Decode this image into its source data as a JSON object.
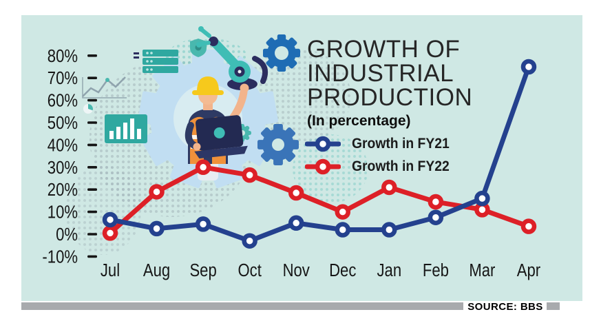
{
  "header": {
    "title_lines": [
      "GROWTH OF",
      "INDUSTRIAL",
      "PRODUCTION"
    ],
    "subtitle": "(In percentage)"
  },
  "source": {
    "label": "SOURCE: BBS"
  },
  "colors": {
    "panel_background": "#cfe8e4",
    "fy21_blue": "#24418e",
    "fy22_red": "#dd2027",
    "source_bar_gray": "#a8aaad",
    "title_gear_blue": "#1e6cb4",
    "axis_text": "#161616"
  },
  "icons": {
    "title_gear": "gear-icon",
    "illustration": "worker-with-laptop-and-industry-icons"
  },
  "chart_data": {
    "type": "line",
    "title": "GROWTH OF INDUSTRIAL PRODUCTION",
    "subtitle": "(In percentage)",
    "categories": [
      "Jul",
      "Aug",
      "Sep",
      "Oct",
      "Nov",
      "Dec",
      "Jan",
      "Feb",
      "Mar",
      "Apr"
    ],
    "series": [
      {
        "name": "Growth in FY21",
        "color": "#24418e",
        "values": [
          6.5,
          2.5,
          4.5,
          -3,
          5,
          2,
          2,
          7.5,
          16,
          75
        ]
      },
      {
        "name": "Growth in FY22",
        "color": "#dd2027",
        "values": [
          0.5,
          19,
          30,
          26.5,
          18.5,
          10,
          21,
          14.5,
          11,
          3.5
        ]
      }
    ],
    "yticks": [
      "80%",
      "70%",
      "60%",
      "50%",
      "40%",
      "30%",
      "20%",
      "10%",
      "0%",
      "-10%"
    ],
    "ylim": [
      -10,
      80
    ],
    "unit": "percent",
    "grid": false,
    "legend_position": "inside-top-right",
    "source": "SOURCE: BBS"
  }
}
